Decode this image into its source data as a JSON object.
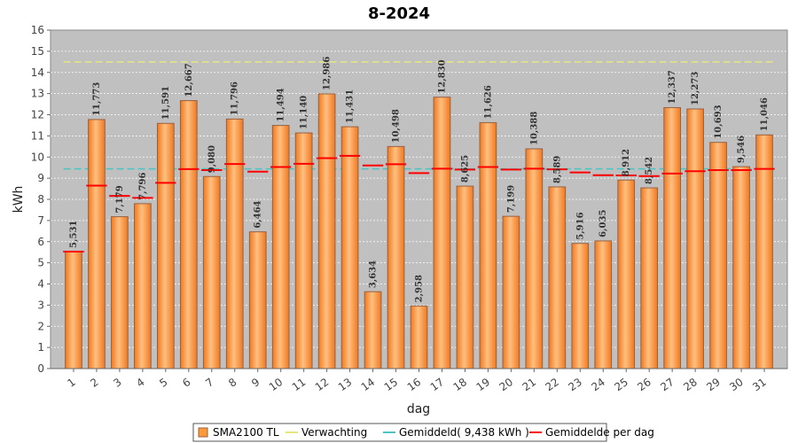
{
  "chart_data": {
    "type": "bar",
    "title": "8-2024",
    "xlabel": "dag",
    "ylabel": "kWh",
    "ylim": [
      0,
      16
    ],
    "yticks": [
      0,
      1,
      2,
      3,
      4,
      5,
      6,
      7,
      8,
      9,
      10,
      11,
      12,
      13,
      14,
      15,
      16
    ],
    "grid": true,
    "legend_position": "bottom",
    "categories": [
      "1",
      "2",
      "3",
      "4",
      "5",
      "6",
      "7",
      "8",
      "9",
      "10",
      "11",
      "12",
      "13",
      "14",
      "15",
      "16",
      "17",
      "18",
      "19",
      "20",
      "21",
      "22",
      "23",
      "24",
      "25",
      "26",
      "27",
      "28",
      "29",
      "30",
      "31"
    ],
    "series": [
      {
        "name": "SMA2100 TL",
        "values": [
          5.531,
          11.773,
          7.179,
          7.796,
          11.591,
          12.667,
          9.08,
          11.796,
          6.464,
          11.494,
          11.14,
          12.986,
          11.431,
          3.634,
          10.498,
          2.958,
          12.83,
          8.625,
          11.626,
          7.199,
          10.388,
          8.589,
          5.916,
          6.035,
          8.912,
          8.542,
          12.337,
          12.273,
          10.693,
          9.546,
          11.046
        ],
        "labels": [
          "5,531",
          "11,773",
          "7,179",
          "7,796",
          "11,591",
          "12,667",
          "9,080",
          "11,796",
          "6,464",
          "11,494",
          "11,140",
          "12,986",
          "11,431",
          "3,634",
          "10,498",
          "2,958",
          "12,830",
          "8,625",
          "11,626",
          "7,199",
          "10,388",
          "8,589",
          "5,916",
          "6,035",
          "8,912",
          "8,542",
          "12,337",
          "12,273",
          "10,693",
          "9,546",
          "11,046"
        ]
      },
      {
        "name": "Gemiddelde per dag",
        "values": [
          5.53,
          8.65,
          8.16,
          8.07,
          8.78,
          9.43,
          9.38,
          9.67,
          9.31,
          9.53,
          9.68,
          9.95,
          10.06,
          9.6,
          9.66,
          9.24,
          9.45,
          9.41,
          9.53,
          9.41,
          9.45,
          9.42,
          9.27,
          9.14,
          9.13,
          9.1,
          9.22,
          9.33,
          9.38,
          9.38,
          9.44
        ]
      }
    ],
    "reference_lines": [
      {
        "name": "Verwachting",
        "value": 14.5,
        "color": "#e6e680"
      },
      {
        "name": "Gemiddeld( 9,438 kWh )",
        "value": 9.438,
        "color": "#4cc4c4"
      }
    ],
    "colors": {
      "plot_bg": "#c0c0c0",
      "bar_fill": "#ff9a3c",
      "bar_light": "#ffc080",
      "bar_dark": "#f07820",
      "bar_stroke": "#9a6040",
      "avg_per_day": "#ff0000",
      "grid": "#ffffff"
    },
    "legend": [
      {
        "label": "SMA2100 TL",
        "kind": "box",
        "color": "#ff9a3c"
      },
      {
        "label": "Verwachting",
        "kind": "line",
        "color": "#e6e680"
      },
      {
        "label": "Gemiddeld( 9,438 kWh )",
        "kind": "line",
        "color": "#4cc4c4"
      },
      {
        "label": "Gemiddelde per dag",
        "kind": "line",
        "color": "#ff0000"
      }
    ]
  }
}
